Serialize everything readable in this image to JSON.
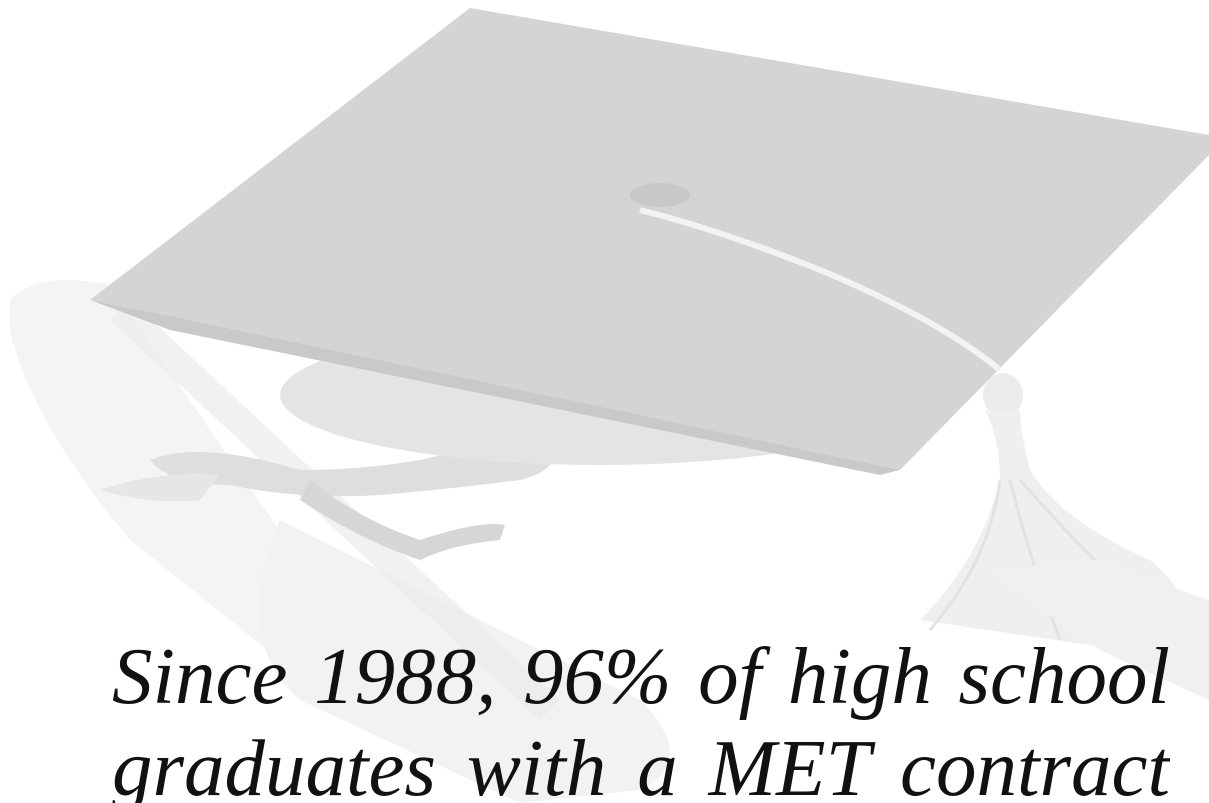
{
  "caption": {
    "line1": "Since 1988, 96% of high school",
    "line2": "graduates with a MET contract"
  },
  "colors": {
    "background": "#ffffff",
    "cap_top": "#d3d3d3",
    "cap_shadow": "#e3e3e3",
    "tassel": "#eeeeee",
    "diploma": "#f3f3f3",
    "ribbon": "#dcdcdc",
    "text": "#111111"
  },
  "icons": [
    "graduation-cap-icon",
    "diploma-scroll-icon",
    "tassel-icon"
  ]
}
